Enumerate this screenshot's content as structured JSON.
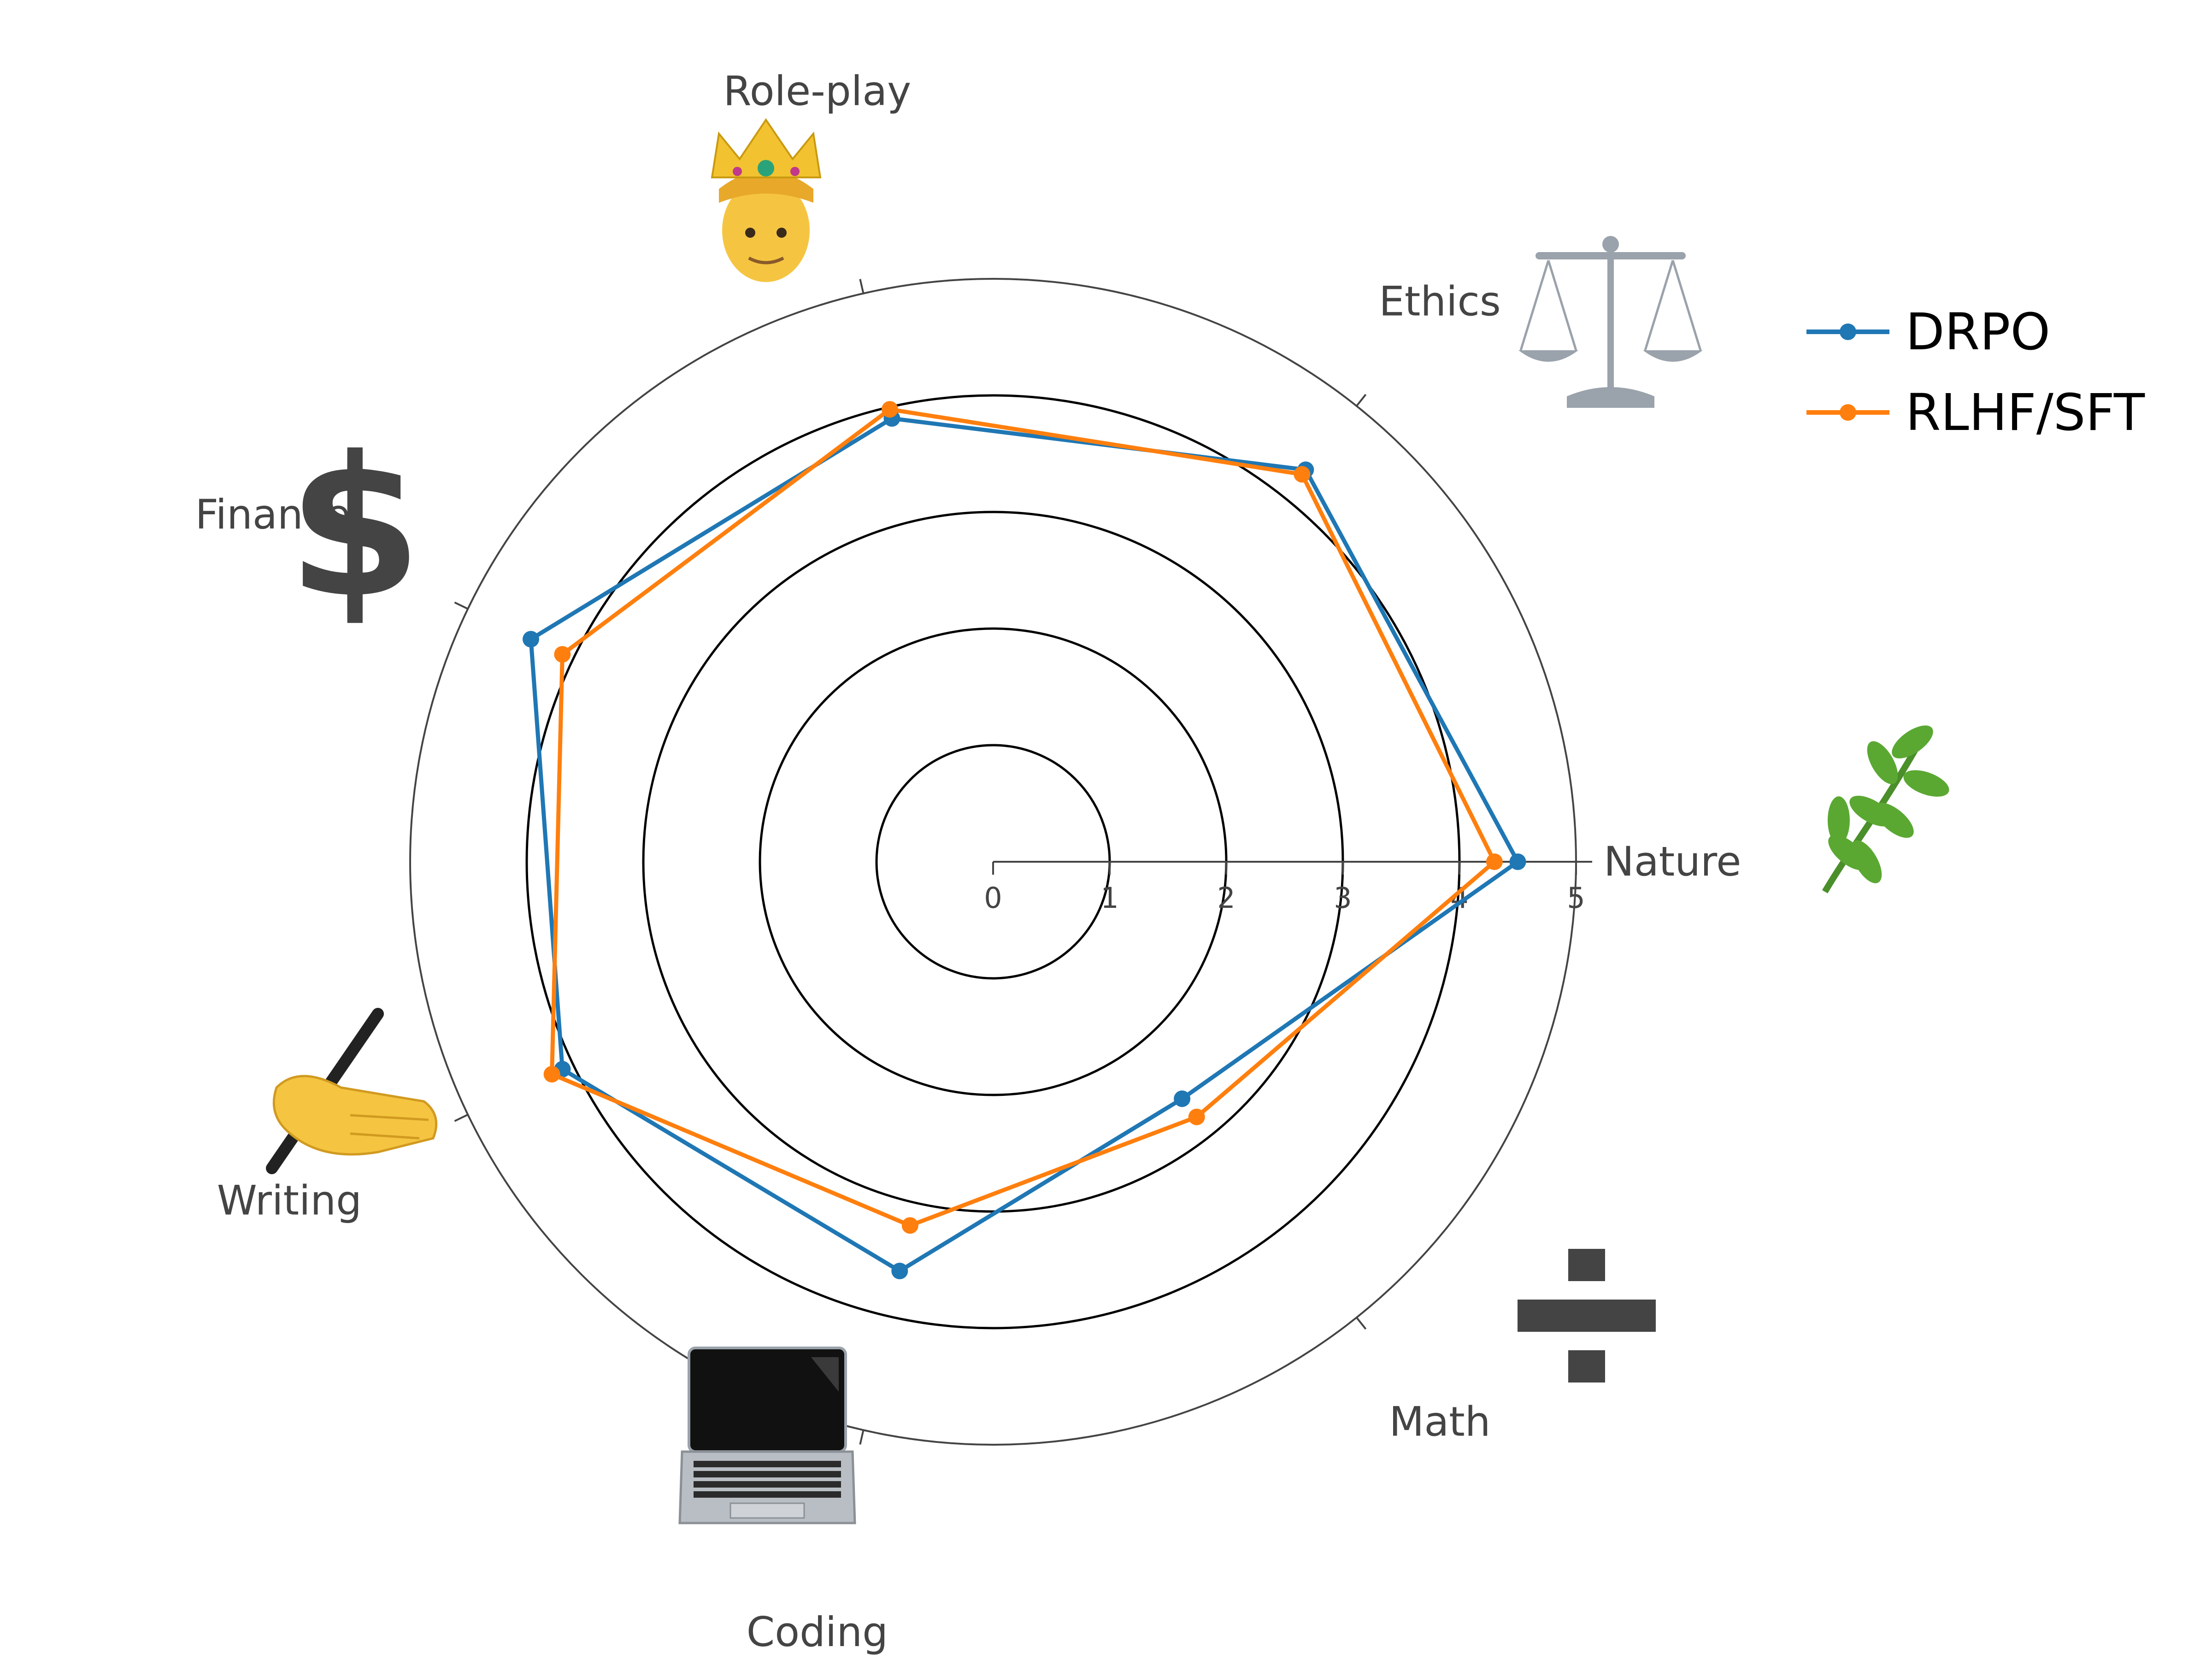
{
  "chart_data": {
    "type": "radar",
    "categories": [
      "Nature",
      "Ethics",
      "Role-play",
      "Finance",
      "Writing",
      "Coding",
      "Math"
    ],
    "category_icons": [
      "leaf-icon",
      "scales-icon",
      "crown-person-icon",
      "dollar-icon",
      "writing-hand-icon",
      "laptop-icon",
      "divide-icon"
    ],
    "radial_ticks": [
      "0",
      "1",
      "2",
      "3",
      "4",
      "5"
    ],
    "rmax": 5,
    "grid": true,
    "legend_position": "top-right",
    "series": [
      {
        "name": "DRPO",
        "color": "#1f77b4",
        "values": [
          4.5,
          4.3,
          3.9,
          4.4,
          4.1,
          3.6,
          2.6
        ]
      },
      {
        "name": "RLHF/SFT",
        "color": "#ff7f0e",
        "values": [
          4.3,
          4.25,
          3.98,
          4.1,
          4.2,
          3.2,
          2.8
        ]
      }
    ]
  }
}
